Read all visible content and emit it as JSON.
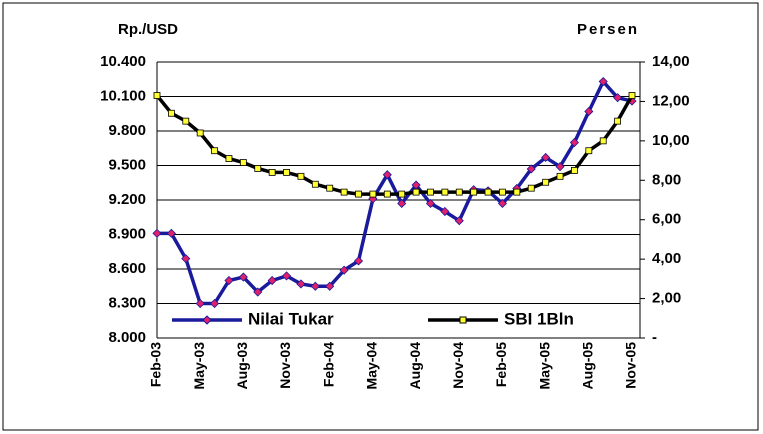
{
  "chart_data": {
    "type": "line",
    "y_label": "Rp./USD",
    "y2_label": "Persen",
    "categories": [
      "Feb-03",
      null,
      null,
      "May-03",
      null,
      null,
      "Aug-03",
      null,
      null,
      "Nov-03",
      null,
      null,
      "Feb-04",
      null,
      null,
      "May-04",
      null,
      null,
      "Aug-04",
      null,
      null,
      "Nov-04",
      null,
      null,
      "Feb-05",
      null,
      null,
      "May-05",
      null,
      null,
      "Aug-05",
      null,
      null,
      "Nov-05"
    ],
    "series": [
      {
        "name": "Nilai Tukar",
        "color": "#1a1a9c",
        "marker_color": "#e0206a",
        "marker": "diamond",
        "values": [
          8910,
          8910,
          8690,
          8300,
          8300,
          8500,
          8530,
          8400,
          8500,
          8540,
          8470,
          8450,
          8450,
          8590,
          8670,
          9210,
          9420,
          9170,
          9330,
          9170,
          9100,
          9020,
          9290,
          9280,
          9170,
          9300,
          9470,
          9570,
          9490,
          9700,
          9970,
          10230,
          10090,
          10060
        ]
      },
      {
        "name": "SBI 1Bln",
        "color": "#000000",
        "marker_color": "#ffff33",
        "marker": "square",
        "axis": "y2",
        "values": [
          12.3,
          11.4,
          11.0,
          10.4,
          9.5,
          9.1,
          8.9,
          8.6,
          8.4,
          8.4,
          8.2,
          7.8,
          7.6,
          7.4,
          7.3,
          7.3,
          7.3,
          7.3,
          7.4,
          7.4,
          7.4,
          7.4,
          7.4,
          7.4,
          7.4,
          7.4,
          7.6,
          7.9,
          8.2,
          8.5,
          9.5,
          10.0,
          11.0,
          12.3
        ]
      }
    ],
    "ylim": [
      8000,
      10400
    ],
    "yticks": [
      {
        "value": 8000,
        "label": "8.000"
      },
      {
        "value": 8300,
        "label": "8.300"
      },
      {
        "value": 8600,
        "label": "8.600"
      },
      {
        "value": 8900,
        "label": "8.900"
      },
      {
        "value": 9200,
        "label": "9.200"
      },
      {
        "value": 9500,
        "label": "9.500"
      },
      {
        "value": 9800,
        "label": "9.800"
      },
      {
        "value": 10100,
        "label": "10.100"
      },
      {
        "value": 10400,
        "label": "10.400"
      }
    ],
    "y2lim": [
      0,
      14
    ],
    "y2ticks": [
      {
        "value": 0,
        "label": "-"
      },
      {
        "value": 2,
        "label": "2,00"
      },
      {
        "value": 4,
        "label": "4,00"
      },
      {
        "value": 6,
        "label": "6,00"
      },
      {
        "value": 8,
        "label": "8,00"
      },
      {
        "value": 10,
        "label": "10,00"
      },
      {
        "value": 12,
        "label": "12,00"
      },
      {
        "value": 14,
        "label": "14,00"
      }
    ],
    "grid": true,
    "legend": "bottom"
  }
}
